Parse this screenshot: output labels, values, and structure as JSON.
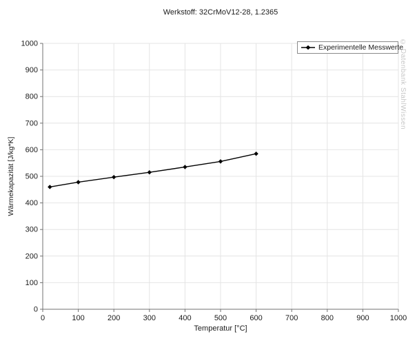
{
  "title": "Werkstoff: 32CrMoV12-28, 1.2365",
  "watermark": "© Datenbank StahlWissen",
  "colors": {
    "grid": "#e4e4e4",
    "axis": "#707070",
    "series": "#000000",
    "text": "#1a1a1a",
    "watermark": "#c7c7c7"
  },
  "legend": {
    "position": "top-right",
    "items": [
      {
        "label": "Experimentelle Messwerte",
        "marker": "line-diamond"
      }
    ]
  },
  "chart_data": {
    "type": "line",
    "title": "Werkstoff: 32CrMoV12-28, 1.2365",
    "xlabel": "Temperatur [°C]",
    "ylabel": "Wärmekapazität [J/kg*K]",
    "xlim": [
      0,
      1000
    ],
    "ylim": [
      0,
      1000
    ],
    "x_ticks": [
      0,
      100,
      200,
      300,
      400,
      500,
      600,
      700,
      800,
      900,
      1000
    ],
    "y_ticks": [
      0,
      100,
      200,
      300,
      400,
      500,
      600,
      700,
      800,
      900,
      1000
    ],
    "grid": true,
    "legend_position": "top-right",
    "series": [
      {
        "name": "Experimentelle Messwerte",
        "marker": "diamond",
        "color": "#000000",
        "x": [
          20,
          100,
          200,
          300,
          400,
          500,
          600
        ],
        "y": [
          460,
          478,
          497,
          515,
          535,
          556,
          585
        ]
      }
    ]
  }
}
